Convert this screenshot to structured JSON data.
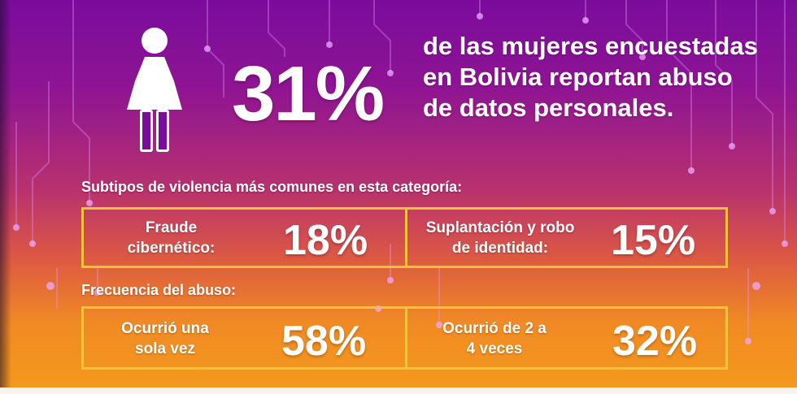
{
  "hero": {
    "percent": "31%",
    "headline": "de las mujeres encuestadas en Bolivia reportan abuso de datos personales."
  },
  "subtypes": {
    "title": "Subtipos de violencia más comunes en esta categoría:",
    "items": [
      {
        "label": "Fraude cibernético:",
        "percent": "18%"
      },
      {
        "label": "Suplantación y robo de identidad:",
        "percent": "15%"
      }
    ]
  },
  "frequency": {
    "title": "Frecuencia del abuso:",
    "items": [
      {
        "label": "Ocurrió una sola vez",
        "percent": "58%"
      },
      {
        "label": "Ocurrió de 2 a 4 veces",
        "percent": "32%"
      }
    ]
  },
  "icons": {
    "woman": "woman-figure-icon"
  },
  "colors": {
    "box_border": "#f7c23a",
    "icon_accent": "#7a0c9c"
  }
}
